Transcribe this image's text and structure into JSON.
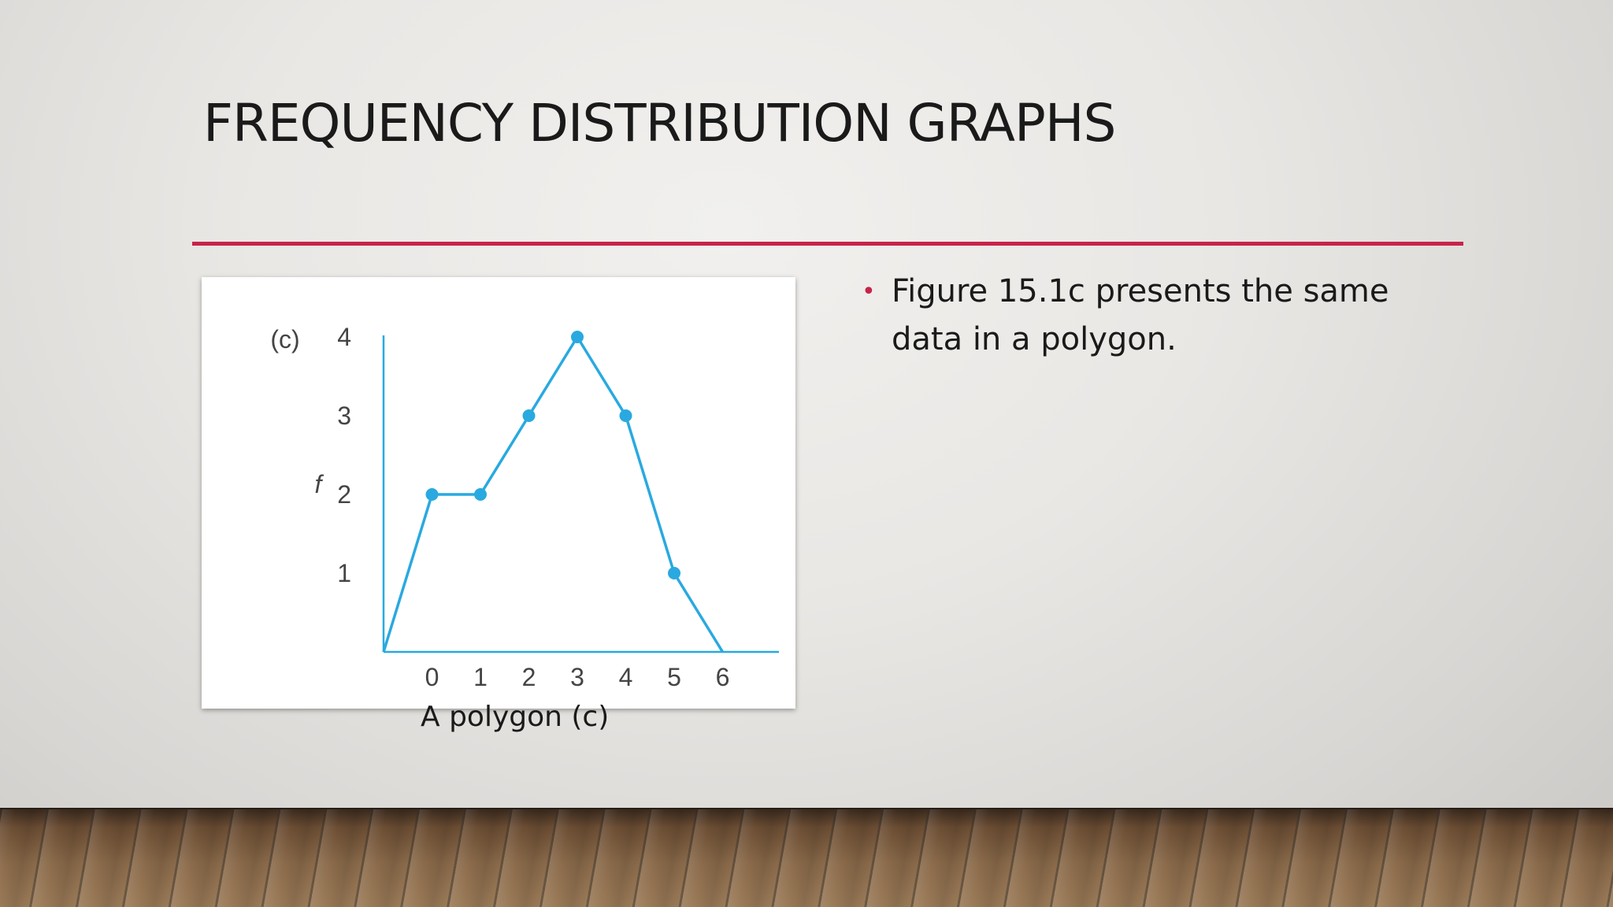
{
  "slide": {
    "title": "FREQUENCY DISTRIBUTION GRAPHS",
    "caption": "A polygon (c)",
    "bullets": [
      "Figure 15.1c presents the same data in a polygon."
    ]
  },
  "colors": {
    "accent": "#c8234a",
    "series": "#29a9e0"
  },
  "chart_data": {
    "type": "line",
    "panel_label": "(c)",
    "ylabel": "f",
    "xlabel": "",
    "x": [
      -1,
      0,
      1,
      2,
      3,
      4,
      5,
      6
    ],
    "y": [
      0,
      2,
      2,
      3,
      4,
      3,
      1,
      0
    ],
    "marker_x": [
      0,
      1,
      2,
      3,
      4,
      5
    ],
    "xticks": [
      0,
      1,
      2,
      3,
      4,
      5,
      6
    ],
    "yticks": [
      1,
      2,
      3,
      4
    ],
    "xlim": [
      -1,
      7
    ],
    "ylim": [
      0,
      4
    ],
    "grid": false
  }
}
